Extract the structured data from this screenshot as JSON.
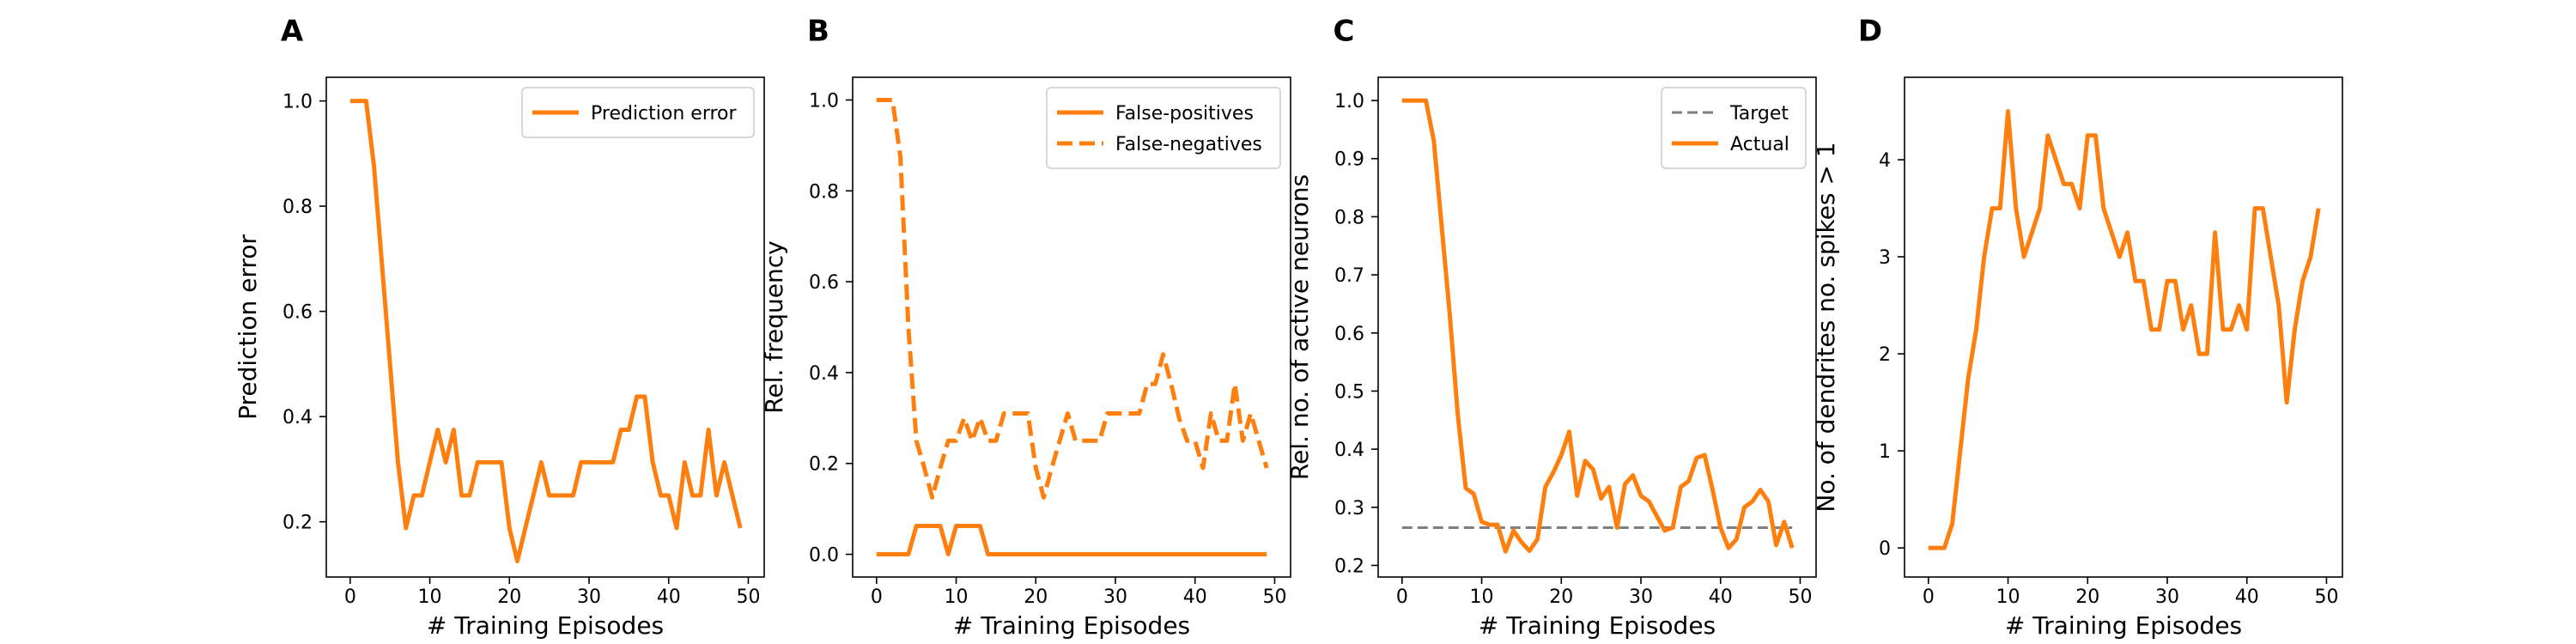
{
  "figure": {
    "panel_letters": [
      "A",
      "B",
      "C",
      "D"
    ]
  },
  "colors": {
    "orange": "#ff7f0e",
    "target_gray": "#7f7f7f"
  },
  "chart_data": [
    {
      "panel": "A",
      "type": "line",
      "xlabel": "# Training Episodes",
      "ylabel": "Prediction error",
      "xlim": [
        -3,
        52
      ],
      "ylim": [
        0.095,
        1.045
      ],
      "xticks": [
        0,
        10,
        20,
        30,
        40,
        50
      ],
      "yticks": [
        0.2,
        0.4,
        0.6,
        0.8,
        1.0
      ],
      "ytick_labels": [
        "0.2",
        "0.4",
        "0.6",
        "0.8",
        "1.0"
      ],
      "legend_position": "top-right",
      "series": [
        {
          "name": "Prediction error",
          "style": "solid",
          "x": [
            0,
            1,
            2,
            3,
            4,
            5,
            6,
            7,
            8,
            9,
            10,
            11,
            12,
            13,
            14,
            15,
            16,
            17,
            18,
            19,
            20,
            21,
            22,
            23,
            24,
            25,
            26,
            27,
            28,
            29,
            30,
            31,
            32,
            33,
            34,
            35,
            36,
            37,
            38,
            39,
            40,
            41,
            42,
            43,
            44,
            45,
            46,
            47,
            48,
            49
          ],
          "values": [
            1.0,
            1.0,
            1.0,
            0.875,
            0.688,
            0.5,
            0.313,
            0.188,
            0.25,
            0.25,
            0.313,
            0.375,
            0.313,
            0.375,
            0.25,
            0.25,
            0.313,
            0.313,
            0.313,
            0.313,
            0.188,
            0.125,
            0.188,
            0.25,
            0.313,
            0.25,
            0.25,
            0.25,
            0.25,
            0.313,
            0.313,
            0.313,
            0.313,
            0.313,
            0.375,
            0.375,
            0.438,
            0.438,
            0.313,
            0.25,
            0.25,
            0.188,
            0.313,
            0.25,
            0.25,
            0.375,
            0.25,
            0.313,
            0.25,
            0.188
          ]
        }
      ]
    },
    {
      "panel": "B",
      "type": "line",
      "xlabel": "# Training Episodes",
      "ylabel": "Rel. frequency",
      "xlim": [
        -3,
        52
      ],
      "ylim": [
        -0.05,
        1.05
      ],
      "xticks": [
        0,
        10,
        20,
        30,
        40,
        50
      ],
      "yticks": [
        0.0,
        0.2,
        0.4,
        0.6,
        0.8,
        1.0
      ],
      "ytick_labels": [
        "0.0",
        "0.2",
        "0.4",
        "0.6",
        "0.8",
        "1.0"
      ],
      "legend_position": "top-right",
      "series": [
        {
          "name": "False-positives",
          "style": "solid",
          "x": [
            0,
            1,
            2,
            3,
            4,
            5,
            6,
            7,
            8,
            9,
            10,
            11,
            12,
            13,
            14,
            15,
            16,
            17,
            18,
            19,
            20,
            21,
            22,
            23,
            24,
            25,
            26,
            27,
            28,
            29,
            30,
            31,
            32,
            33,
            34,
            35,
            36,
            37,
            38,
            39,
            40,
            41,
            42,
            43,
            44,
            45,
            46,
            47,
            48,
            49
          ],
          "values": [
            0,
            0,
            0,
            0,
            0,
            0.0625,
            0.0625,
            0.0625,
            0.0625,
            0,
            0.0625,
            0.0625,
            0.0625,
            0.0625,
            0,
            0,
            0,
            0,
            0,
            0,
            0,
            0,
            0,
            0,
            0,
            0,
            0,
            0,
            0,
            0,
            0,
            0,
            0,
            0,
            0,
            0,
            0,
            0,
            0,
            0,
            0,
            0,
            0,
            0,
            0,
            0,
            0,
            0,
            0,
            0
          ]
        },
        {
          "name": "False-negatives",
          "style": "dashed",
          "x": [
            0,
            1,
            2,
            3,
            4,
            5,
            6,
            7,
            8,
            9,
            10,
            11,
            12,
            13,
            14,
            15,
            16,
            17,
            18,
            19,
            20,
            21,
            22,
            23,
            24,
            25,
            26,
            27,
            28,
            29,
            30,
            31,
            32,
            33,
            34,
            35,
            36,
            37,
            38,
            39,
            40,
            41,
            42,
            43,
            44,
            45,
            46,
            47,
            48,
            49
          ],
          "values": [
            1.0,
            1.0,
            1.0,
            0.875,
            0.5,
            0.25,
            0.19,
            0.125,
            0.19,
            0.25,
            0.25,
            0.3,
            0.25,
            0.3,
            0.25,
            0.25,
            0.31,
            0.31,
            0.31,
            0.31,
            0.19,
            0.125,
            0.19,
            0.25,
            0.31,
            0.25,
            0.25,
            0.25,
            0.25,
            0.31,
            0.31,
            0.31,
            0.31,
            0.31,
            0.375,
            0.375,
            0.44,
            0.375,
            0.3,
            0.25,
            0.25,
            0.19,
            0.31,
            0.25,
            0.25,
            0.375,
            0.25,
            0.31,
            0.25,
            0.19
          ]
        }
      ]
    },
    {
      "panel": "C",
      "type": "line",
      "xlabel": "# Training Episodes",
      "ylabel": "Rel. no. of active neurons",
      "xlim": [
        -3,
        52
      ],
      "ylim": [
        0.18,
        1.04
      ],
      "xticks": [
        0,
        10,
        20,
        30,
        40,
        50
      ],
      "yticks": [
        0.2,
        0.3,
        0.4,
        0.5,
        0.6,
        0.7,
        0.8,
        0.9,
        1.0
      ],
      "ytick_labels": [
        "0.2",
        "0.3",
        "0.4",
        "0.5",
        "0.6",
        "0.7",
        "0.8",
        "0.9",
        "1.0"
      ],
      "legend_position": "top-right",
      "series": [
        {
          "name": "Target",
          "style": "dashed-gray",
          "x": [
            0,
            49
          ],
          "values": [
            0.265,
            0.265
          ]
        },
        {
          "name": "Actual",
          "style": "solid",
          "x": [
            0,
            1,
            2,
            3,
            4,
            5,
            6,
            7,
            8,
            9,
            10,
            11,
            12,
            13,
            14,
            15,
            16,
            17,
            18,
            19,
            20,
            21,
            22,
            23,
            24,
            25,
            26,
            27,
            28,
            29,
            30,
            31,
            32,
            33,
            34,
            35,
            36,
            37,
            38,
            39,
            40,
            41,
            42,
            43,
            44,
            45,
            46,
            47,
            48,
            49
          ],
          "values": [
            1.0,
            1.0,
            1.0,
            1.0,
            0.93,
            0.78,
            0.63,
            0.46,
            0.333,
            0.323,
            0.275,
            0.27,
            0.27,
            0.224,
            0.26,
            0.24,
            0.225,
            0.245,
            0.335,
            0.36,
            0.39,
            0.43,
            0.32,
            0.38,
            0.365,
            0.315,
            0.335,
            0.265,
            0.34,
            0.355,
            0.32,
            0.31,
            0.285,
            0.26,
            0.265,
            0.335,
            0.345,
            0.385,
            0.39,
            0.33,
            0.265,
            0.23,
            0.245,
            0.3,
            0.31,
            0.33,
            0.31,
            0.235,
            0.275,
            0.23
          ]
        }
      ]
    },
    {
      "panel": "D",
      "type": "line",
      "xlabel": "# Training Episodes",
      "ylabel": "No. of dendrites no. spikes > 1",
      "xlim": [
        -3,
        52
      ],
      "ylim": [
        -0.3,
        4.85
      ],
      "xticks": [
        0,
        10,
        20,
        30,
        40,
        50
      ],
      "yticks": [
        0,
        1,
        2,
        3,
        4
      ],
      "ytick_labels": [
        "0",
        "1",
        "2",
        "3",
        "4"
      ],
      "legend_position": "none",
      "series": [
        {
          "name": "",
          "style": "solid",
          "x": [
            0,
            1,
            2,
            3,
            4,
            5,
            6,
            7,
            8,
            9,
            10,
            11,
            12,
            13,
            14,
            15,
            16,
            17,
            18,
            19,
            20,
            21,
            22,
            23,
            24,
            25,
            26,
            27,
            28,
            29,
            30,
            31,
            32,
            33,
            34,
            35,
            36,
            37,
            38,
            39,
            40,
            41,
            42,
            43,
            44,
            45,
            46,
            47,
            48,
            49
          ],
          "values": [
            0,
            0,
            0,
            0.25,
            1.0,
            1.75,
            2.25,
            3.0,
            3.5,
            3.5,
            4.5,
            3.5,
            3.0,
            3.25,
            3.5,
            4.25,
            4.0,
            3.75,
            3.75,
            3.5,
            4.25,
            4.25,
            3.5,
            3.25,
            3.0,
            3.25,
            2.75,
            2.75,
            2.25,
            2.25,
            2.75,
            2.75,
            2.25,
            2.5,
            2.0,
            2.0,
            3.25,
            2.25,
            2.25,
            2.5,
            2.25,
            3.5,
            3.5,
            3.0,
            2.5,
            1.5,
            2.25,
            2.75,
            3.0,
            3.5
          ]
        }
      ]
    }
  ]
}
